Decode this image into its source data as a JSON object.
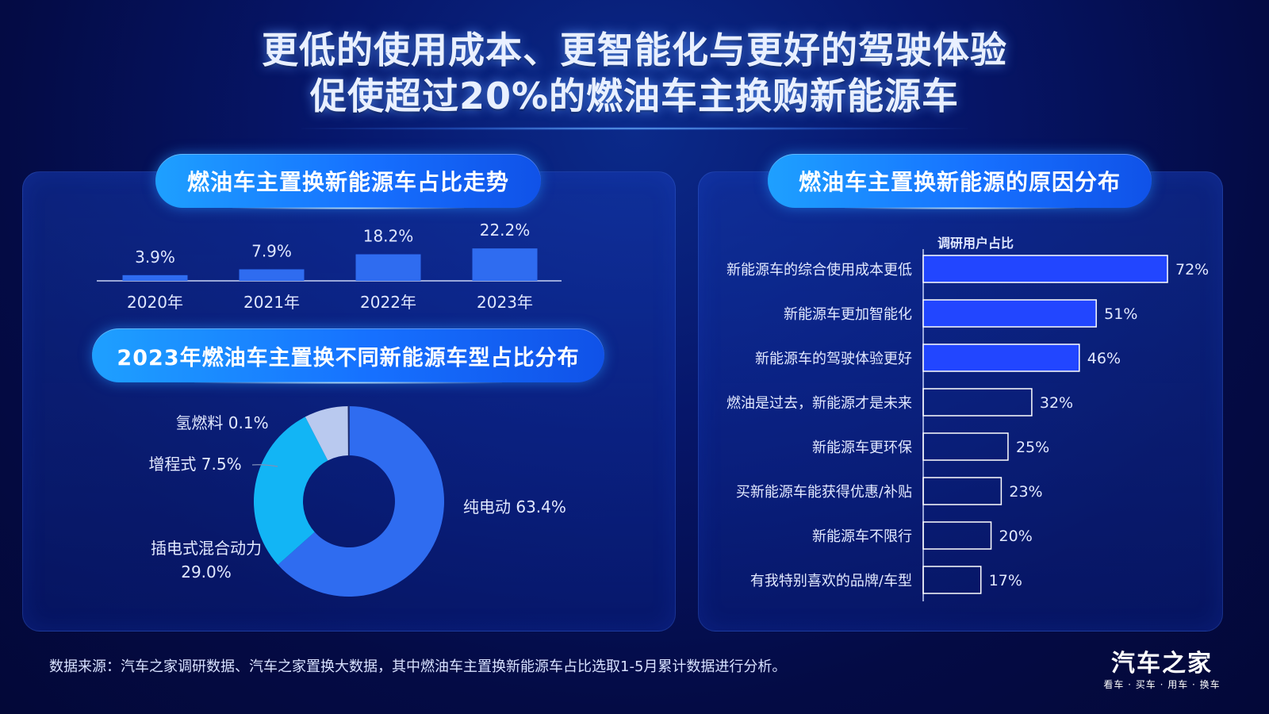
{
  "title": {
    "line1": "更低的使用成本、更智能化与更好的驾驶体验",
    "line2": "促使超过20%的燃油车主换购新能源车"
  },
  "left_panel": {
    "trend_heading": "燃油车主置换新能源车占比走势",
    "donut_heading": "2023年燃油车主置换不同新能源车型占比分布"
  },
  "right_panel": {
    "heading": "燃油车主置换新能源的原因分布"
  },
  "footer": {
    "source": "数据来源：汽车之家调研数据、汽车之家置换大数据，其中燃油车主置换新能源车占比选取1-5月累计数据进行分析。"
  },
  "logo": {
    "name": "汽车之家",
    "tagline": "看车 · 买车 · 用车 · 换车"
  },
  "colors": {
    "bar_bright": "#2246ff",
    "bar_mid": "#2f6cf0",
    "donut_pure_ev": "#2f6cf0",
    "donut_phev": "#12b5f5",
    "donut_erev": "#b9c9ef"
  },
  "chart_data": [
    {
      "type": "bar",
      "categories": [
        "2020年",
        "2021年",
        "2022年",
        "2023年"
      ],
      "values": [
        3.9,
        7.9,
        18.2,
        22.2
      ],
      "value_labels": [
        "3.9%",
        "7.9%",
        "18.2%",
        "22.2%"
      ],
      "ylim": [
        0,
        25
      ]
    },
    {
      "type": "pie",
      "donut": true,
      "slices": [
        {
          "label": "纯电动",
          "value": 63.4,
          "value_label": "63.4%"
        },
        {
          "label": "插电式混合动力",
          "value": 29.0,
          "value_label": "29.0%"
        },
        {
          "label": "增程式",
          "value": 7.5,
          "value_label": "7.5%"
        },
        {
          "label": "氢燃料",
          "value": 0.1,
          "value_label": "0.1%"
        }
      ]
    },
    {
      "type": "bar",
      "orientation": "horizontal",
      "axis_label": "调研用户占比",
      "categories": [
        "新能源车的综合使用成本更低",
        "新能源车更加智能化",
        "新能源车的驾驶体验更好",
        "燃油是过去，新能源才是未来",
        "新能源车更环保",
        "买新能源车能获得优惠/补贴",
        "新能源车不限行",
        "有我特别喜欢的品牌/车型"
      ],
      "values": [
        72,
        51,
        46,
        32,
        25,
        23,
        20,
        17
      ],
      "value_labels": [
        "72%",
        "51%",
        "46%",
        "32%",
        "25%",
        "23%",
        "20%",
        "17%"
      ],
      "highlighted_count": 3,
      "xlim": [
        0,
        72
      ]
    }
  ]
}
